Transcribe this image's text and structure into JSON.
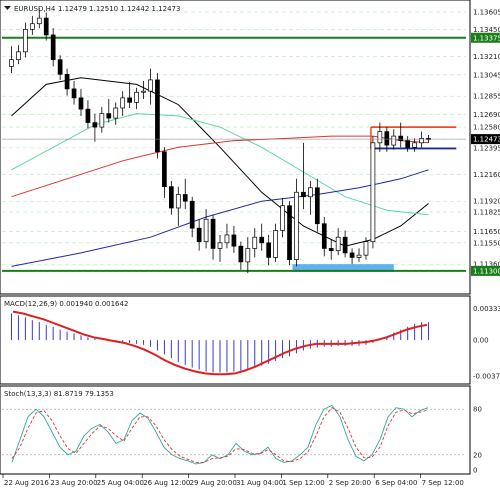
{
  "window": {
    "symbol": "EURUSD,H4",
    "ohlc": "1.12479 1.12510 1.12442 1.12473"
  },
  "chart_data": [
    {
      "type": "candlestick",
      "ylim": [
        1.1113,
        1.1364
      ],
      "ytick_labels": [
        "1.13605",
        "1.13450",
        "1.13375",
        "1.13210",
        "1.13045",
        "1.12855",
        "1.12690",
        "1.12580",
        "1.12473",
        "1.12395",
        "1.12160",
        "1.11920",
        "1.11825",
        "1.11650",
        "1.11550",
        "1.11360",
        "1.11300"
      ],
      "ytick_values": [
        1.13605,
        1.1345,
        1.13375,
        1.1321,
        1.13045,
        1.12855,
        1.1269,
        1.1258,
        1.12473,
        1.12395,
        1.1216,
        1.1192,
        1.11825,
        1.1165,
        1.1155,
        1.1136,
        1.113
      ],
      "ytick_highlight": {
        "1.13375": "#1a7f1a",
        "1.12473": "#000000",
        "1.11300": "#1a7f1a"
      },
      "xtick_labels": [
        "22 Aug 2016",
        "23 Aug 20:00",
        "25 Aug 04:00",
        "26 Aug 12:00",
        "29 Aug 20:00",
        "31 Aug 04:00",
        "1 Sep 12:00",
        "2 Sep 20:00",
        "6 Sep 04:00",
        "7 Sep 12:00"
      ],
      "last_price": 1.12473,
      "horizontal_levels": [
        {
          "value": 1.13375,
          "color": "#1a7f1a"
        },
        {
          "value": 1.113,
          "color": "#1a7f1a"
        },
        {
          "value": 1.1258,
          "color": "#e8501e"
        },
        {
          "value": 1.1239,
          "color": "#1e2a9e"
        }
      ],
      "zones": [
        {
          "from": 1.1136,
          "to": 1.1129,
          "color": "#5fb3ea"
        }
      ],
      "candles": [
        [
          1.1312,
          1.133,
          1.1306,
          1.1318
        ],
        [
          1.1318,
          1.1331,
          1.1314,
          1.1325
        ],
        [
          1.1325,
          1.1351,
          1.132,
          1.1345
        ],
        [
          1.1345,
          1.1357,
          1.134,
          1.135
        ],
        [
          1.135,
          1.1364,
          1.1346,
          1.1355
        ],
        [
          1.1355,
          1.136,
          1.1335,
          1.134
        ],
        [
          1.134,
          1.1346,
          1.1312,
          1.1318
        ],
        [
          1.1318,
          1.1322,
          1.13,
          1.1305
        ],
        [
          1.1305,
          1.131,
          1.1286,
          1.1292
        ],
        [
          1.1292,
          1.1299,
          1.1278,
          1.1284
        ],
        [
          1.1284,
          1.1292,
          1.1268,
          1.1274
        ],
        [
          1.1274,
          1.1282,
          1.1257,
          1.1262
        ],
        [
          1.1262,
          1.127,
          1.1245,
          1.1258
        ],
        [
          1.1258,
          1.1276,
          1.1253,
          1.127
        ],
        [
          1.127,
          1.1283,
          1.1262,
          1.1266
        ],
        [
          1.1266,
          1.128,
          1.126,
          1.1275
        ],
        [
          1.1275,
          1.129,
          1.1268,
          1.1284
        ],
        [
          1.1284,
          1.1298,
          1.1275,
          1.128
        ],
        [
          1.128,
          1.1293,
          1.1274,
          1.1289
        ],
        [
          1.1289,
          1.1299,
          1.1283,
          1.129
        ],
        [
          1.129,
          1.131,
          1.1278,
          1.13
        ],
        [
          1.13,
          1.1306,
          1.123,
          1.1236
        ],
        [
          1.1236,
          1.124,
          1.1195,
          1.1205
        ],
        [
          1.1205,
          1.121,
          1.118,
          1.1186
        ],
        [
          1.1186,
          1.1205,
          1.117,
          1.1198
        ],
        [
          1.1198,
          1.1212,
          1.1185,
          1.1192
        ],
        [
          1.1192,
          1.1196,
          1.116,
          1.1168
        ],
        [
          1.1168,
          1.1176,
          1.1148,
          1.1156
        ],
        [
          1.1156,
          1.1185,
          1.115,
          1.1176
        ],
        [
          1.1176,
          1.118,
          1.114,
          1.115
        ],
        [
          1.115,
          1.1162,
          1.1138,
          1.1155
        ],
        [
          1.1155,
          1.1172,
          1.115,
          1.1162
        ],
        [
          1.1162,
          1.117,
          1.1146,
          1.1152
        ],
        [
          1.1152,
          1.1156,
          1.1131,
          1.1138
        ],
        [
          1.1138,
          1.116,
          1.1128,
          1.115
        ],
        [
          1.115,
          1.1168,
          1.1142,
          1.116
        ],
        [
          1.116,
          1.1172,
          1.1148,
          1.1155
        ],
        [
          1.1155,
          1.1162,
          1.1135,
          1.1142
        ],
        [
          1.1142,
          1.1172,
          1.1138,
          1.1166
        ],
        [
          1.1166,
          1.1195,
          1.116,
          1.1188
        ],
        [
          1.1188,
          1.1192,
          1.1135,
          1.114
        ],
        [
          1.114,
          1.1212,
          1.1134,
          1.12
        ],
        [
          1.12,
          1.1244,
          1.1185,
          1.1196
        ],
        [
          1.1196,
          1.121,
          1.118,
          1.1204
        ],
        [
          1.1204,
          1.1212,
          1.1165,
          1.1172
        ],
        [
          1.1172,
          1.1178,
          1.1143,
          1.115
        ],
        [
          1.115,
          1.1158,
          1.114,
          1.1148
        ],
        [
          1.1148,
          1.1168,
          1.1144,
          1.116
        ],
        [
          1.116,
          1.1166,
          1.1142,
          1.1146
        ],
        [
          1.1146,
          1.115,
          1.1136,
          1.1142
        ],
        [
          1.1142,
          1.115,
          1.1138,
          1.1144
        ],
        [
          1.1144,
          1.116,
          1.114,
          1.1156
        ],
        [
          1.1156,
          1.125,
          1.115,
          1.1244
        ],
        [
          1.1244,
          1.1262,
          1.1236,
          1.1254
        ],
        [
          1.1254,
          1.1258,
          1.1236,
          1.1242
        ],
        [
          1.1242,
          1.1256,
          1.1238,
          1.125
        ],
        [
          1.125,
          1.1262,
          1.124,
          1.1246
        ],
        [
          1.1246,
          1.125,
          1.1236,
          1.124
        ],
        [
          1.124,
          1.1248,
          1.1236,
          1.1244
        ],
        [
          1.1244,
          1.1254,
          1.124,
          1.1248
        ],
        [
          1.1248,
          1.1251,
          1.1244,
          1.1247
        ]
      ],
      "lines": [
        {
          "color": "#000000",
          "values": [
            [
              0,
              1.1268
            ],
            [
              5,
              1.1296
            ],
            [
              10,
              1.1302
            ],
            [
              18,
              1.1296
            ],
            [
              24,
              1.1278
            ],
            [
              30,
              1.124
            ],
            [
              36,
              1.12
            ],
            [
              42,
              1.117
            ],
            [
              48,
              1.1152
            ],
            [
              52,
              1.1158
            ],
            [
              56,
              1.117
            ],
            [
              60,
              1.119
            ]
          ]
        },
        {
          "color": "#5fd6a8",
          "values": [
            [
              0,
              1.122
            ],
            [
              6,
              1.124
            ],
            [
              12,
              1.126
            ],
            [
              18,
              1.127
            ],
            [
              24,
              1.1268
            ],
            [
              30,
              1.1258
            ],
            [
              36,
              1.124
            ],
            [
              42,
              1.1218
            ],
            [
              48,
              1.1196
            ],
            [
              54,
              1.1184
            ],
            [
              60,
              1.118
            ]
          ]
        },
        {
          "color": "#e23030",
          "values": [
            [
              0,
              1.1196
            ],
            [
              8,
              1.1212
            ],
            [
              16,
              1.1228
            ],
            [
              24,
              1.124
            ],
            [
              32,
              1.1246
            ],
            [
              40,
              1.1248
            ],
            [
              46,
              1.125
            ],
            [
              52,
              1.125
            ],
            [
              56,
              1.1246
            ],
            [
              60,
              1.1244
            ]
          ]
        },
        {
          "color": "#1e2a9e",
          "values": [
            [
              0,
              1.1134
            ],
            [
              10,
              1.1146
            ],
            [
              20,
              1.116
            ],
            [
              28,
              1.1178
            ],
            [
              36,
              1.1192
            ],
            [
              44,
              1.1198
            ],
            [
              50,
              1.1204
            ],
            [
              56,
              1.1212
            ],
            [
              60,
              1.122
            ]
          ]
        }
      ]
    },
    {
      "type": "histogram",
      "title": "MACD(12,26,9) 0.001940 0.001642",
      "ytick_labels": [
        "0.003333",
        "0.00",
        "-0.003795"
      ],
      "ytick_values": [
        0.003333,
        0,
        -0.003795
      ],
      "ylim": [
        -0.0042,
        0.0038
      ],
      "values": [
        0.0028,
        0.0026,
        0.0024,
        0.0021,
        0.0019,
        0.0016,
        0.0014,
        0.0011,
        0.0009,
        0.0007,
        0.0005,
        0.0003,
        0.0002,
        0.0,
        -0.0001,
        -0.0002,
        -0.0002,
        -0.0003,
        -0.0004,
        -0.0005,
        -0.0007,
        -0.0011,
        -0.0015,
        -0.0019,
        -0.0023,
        -0.0026,
        -0.0029,
        -0.0031,
        -0.0033,
        -0.0034,
        -0.0034,
        -0.0034,
        -0.0033,
        -0.0032,
        -0.0031,
        -0.0029,
        -0.0027,
        -0.0025,
        -0.0022,
        -0.0019,
        -0.0017,
        -0.0014,
        -0.0011,
        -0.0009,
        -0.0008,
        -0.0007,
        -0.0007,
        -0.0006,
        -0.0006,
        -0.0006,
        -0.0006,
        -0.0005,
        -0.0003,
        0.0,
        0.0004,
        0.0008,
        0.0011,
        0.0014,
        0.0017,
        0.0019,
        0.0019
      ],
      "signal": [
        0.003,
        0.0028,
        0.0025,
        0.0022,
        0.0018,
        0.0014,
        0.001,
        0.0006,
        0.0003,
        0.0001,
        -0.0001,
        -0.0003,
        -0.0006,
        -0.001,
        -0.0015,
        -0.0021,
        -0.0026,
        -0.003,
        -0.0033,
        -0.0035,
        -0.0036,
        -0.0036,
        -0.0035,
        -0.0032,
        -0.0028,
        -0.0023,
        -0.0018,
        -0.0013,
        -0.0009,
        -0.0006,
        -0.0004,
        -0.0004,
        -0.0004,
        -0.0004,
        -0.0003,
        -0.0002,
        0.0,
        0.0003,
        0.0007,
        0.0011,
        0.0014,
        0.0016
      ],
      "signal_color": "#e21e1e",
      "bar_color": "#3a3acc"
    },
    {
      "type": "line",
      "title": "Stoch(13,3,3) 81.8719 79.1353",
      "ytick_labels": [
        "80",
        "20",
        "0"
      ],
      "ytick_values": [
        80,
        20,
        0
      ],
      "ylim": [
        0,
        100
      ],
      "series": [
        {
          "color": "#2fa8a0",
          "values": [
            10,
            40,
            70,
            80,
            70,
            50,
            30,
            20,
            25,
            45,
            55,
            60,
            50,
            35,
            40,
            65,
            75,
            68,
            50,
            30,
            20,
            15,
            12,
            8,
            10,
            20,
            15,
            20,
            35,
            25,
            20,
            22,
            30,
            15,
            10,
            12,
            20,
            30,
            60,
            80,
            85,
            70,
            40,
            18,
            12,
            20,
            40,
            70,
            82,
            80,
            70,
            78,
            82
          ]
        },
        {
          "color": "#e23030",
          "values": [
            15,
            30,
            55,
            75,
            78,
            65,
            45,
            28,
            22,
            35,
            48,
            58,
            55,
            45,
            38,
            55,
            70,
            70,
            58,
            40,
            27,
            18,
            14,
            10,
            10,
            15,
            16,
            18,
            28,
            27,
            22,
            21,
            27,
            20,
            12,
            11,
            15,
            24,
            45,
            70,
            82,
            76,
            55,
            30,
            16,
            17,
            30,
            58,
            76,
            79,
            74,
            76,
            79
          ]
        }
      ]
    }
  ]
}
